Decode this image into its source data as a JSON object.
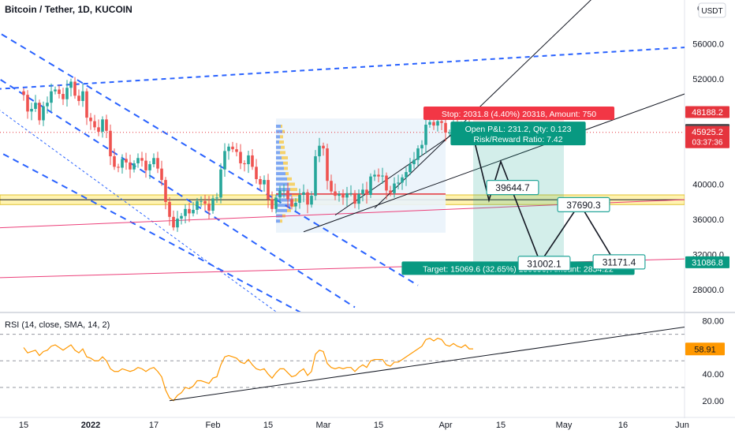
{
  "header": {
    "title": "Bitcoin / Tether, 1D, KUCOIN",
    "currency": "USDT",
    "top_axis_digit": "6"
  },
  "price_axis": {
    "range": [
      25500,
      61000
    ],
    "ticks": [
      {
        "value": 56000,
        "label": "56000.0"
      },
      {
        "value": 52000,
        "label": "52000.0"
      },
      {
        "value": 40000,
        "label": "40000.0"
      },
      {
        "value": 36000,
        "label": "36000.0"
      },
      {
        "value": 32000,
        "label": "32000.0"
      },
      {
        "value": 28000,
        "label": "28000.0"
      }
    ]
  },
  "price_tags": [
    {
      "value": 48188.2,
      "label": "48188.2",
      "color": "#e5343d"
    },
    {
      "value": 46156.4,
      "label": "46156.4",
      "color": "#4b4b4f"
    },
    {
      "value": 45925.2,
      "label": "45925.2",
      "sublabel": "03:37:36",
      "color": "#e5343d"
    },
    {
      "value": 31086.8,
      "label": "31086.8",
      "color": "#089981"
    }
  ],
  "time_axis": {
    "labels": [
      {
        "day": 0,
        "label": "15"
      },
      {
        "day": 17,
        "label": "2022"
      },
      {
        "day": 33,
        "label": "17"
      },
      {
        "day": 48,
        "label": "Feb"
      },
      {
        "day": 62,
        "label": "15"
      },
      {
        "day": 76,
        "label": "Mar"
      },
      {
        "day": 90,
        "label": "15"
      },
      {
        "day": 107,
        "label": "Apr"
      },
      {
        "day": 121,
        "label": "15"
      },
      {
        "day": 137,
        "label": "May"
      },
      {
        "day": 152,
        "label": "16"
      },
      {
        "day": 167,
        "label": "Jun"
      }
    ]
  },
  "position_tool": {
    "stop_label": "Stop: 2031.8 (4.40%) 20318, Amount: 750",
    "pnl_line1": "Open P&L: 231.2, Qty: 0.123",
    "pnl_line2": "Risk/Reward Ratio: 7.42",
    "target_label": "Target: 15069.6 (32.65%) 150696, Amount: 2854.22",
    "entry": 46156,
    "stop": 48188,
    "target": 31087,
    "start_day": 114,
    "end_day": 137
  },
  "path_labels": [
    {
      "label": "39644.7",
      "day": 124,
      "value": 39644.7
    },
    {
      "label": "37690.3",
      "day": 142,
      "value": 37690.3
    },
    {
      "label": "31002.1",
      "day": 132,
      "value": 31002.1
    },
    {
      "label": "31171.4",
      "day": 151,
      "value": 31171.4
    }
  ],
  "projection_path": [
    {
      "day": 114,
      "value": 45500
    },
    {
      "day": 118,
      "value": 38200
    },
    {
      "day": 121,
      "value": 42600
    },
    {
      "day": 131,
      "value": 31100
    },
    {
      "day": 141,
      "value": 37800
    },
    {
      "day": 150,
      "value": 31100
    }
  ],
  "rsi": {
    "title": "RSI (14, close, SMA, 14, 2)",
    "range": [
      8,
      84
    ],
    "current": {
      "value": 58.91,
      "label": "58.91",
      "color": "#ff9800"
    },
    "ticks": [
      {
        "value": 80,
        "label": "80.00"
      },
      {
        "value": 40,
        "label": "40.00"
      },
      {
        "value": 20,
        "label": "20.00"
      }
    ],
    "band_upper": 70,
    "band_mid": 50,
    "band_lower": 30
  },
  "chart_data": {
    "type": "candlestick",
    "title": "Bitcoin / Tether, 1D, KUCOIN",
    "x_unit": "daily bars (day index, bar 0 = Dec 15 2021)",
    "closes": [
      50200,
      48300,
      48600,
      49300,
      47300,
      48900,
      49300,
      50600,
      50800,
      50300,
      49700,
      51000,
      51700,
      50100,
      49500,
      50600,
      47600,
      47200,
      46500,
      46000,
      47400,
      46100,
      43200,
      42000,
      41900,
      42900,
      42500,
      41700,
      42400,
      43000,
      42700,
      41600,
      42300,
      43000,
      41800,
      40500,
      38000,
      36300,
      35100,
      36100,
      36400,
      37200,
      36700,
      37100,
      38100,
      38100,
      37800,
      37000,
      38400,
      38500,
      41700,
      43800,
      44300,
      44000,
      43700,
      42400,
      42300,
      43300,
      42000,
      40600,
      40000,
      40500,
      38300,
      37200,
      38500,
      39300,
      39300,
      38300,
      37500,
      37900,
      38800,
      39100,
      37700,
      38700,
      43200,
      44400,
      44100,
      40400,
      39200,
      38700,
      38900,
      38500,
      39000,
      39000,
      37800,
      38900,
      39400,
      38800,
      40900,
      41100,
      40900,
      41000,
      39300,
      39000,
      40100,
      40200,
      40800,
      41400,
      42300,
      42800,
      44100,
      44500,
      46800,
      47100,
      46700,
      47200,
      47000,
      45900,
      45900,
      46800,
      46300,
      46200,
      46900,
      46200,
      46156
    ]
  },
  "rsi_data": {
    "type": "line",
    "values": [
      60,
      56,
      57,
      58,
      54,
      57,
      58,
      61,
      62,
      60,
      58,
      60,
      62,
      58,
      56,
      59,
      53,
      52,
      50,
      50,
      53,
      50,
      44,
      42,
      42,
      44,
      43,
      42,
      43,
      45,
      44,
      42,
      44,
      45,
      42,
      38,
      28,
      22,
      20,
      24,
      26,
      30,
      29,
      31,
      35,
      35,
      34,
      33,
      37,
      38,
      47,
      53,
      54,
      53,
      52,
      49,
      48,
      51,
      47,
      44,
      43,
      44,
      40,
      37,
      41,
      44,
      44,
      41,
      38,
      39,
      42,
      44,
      39,
      42,
      55,
      58,
      57,
      48,
      45,
      44,
      45,
      44,
      45,
      45,
      42,
      45,
      47,
      45,
      50,
      51,
      51,
      51,
      47,
      46,
      49,
      49,
      51,
      53,
      55,
      57,
      59,
      61,
      66,
      67,
      65,
      67,
      66,
      62,
      61,
      63,
      61,
      60,
      62,
      59,
      59
    ]
  }
}
